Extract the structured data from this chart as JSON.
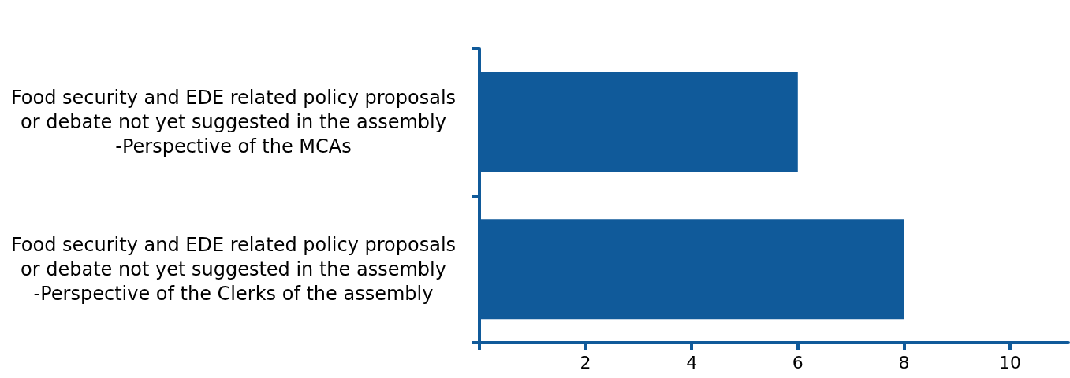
{
  "chart_data": {
    "type": "bar",
    "orientation": "horizontal",
    "categories": [
      "Food security and EDE related policy proposals or debate not yet suggested in the assembly -Perspective of the MCAs",
      "Food security and EDE related policy proposals or debate not yet suggested in the assembly -Perspective of the Clerks of the assembly"
    ],
    "values": [
      6,
      8
    ],
    "color": "#105a9a",
    "xlim": [
      0,
      11.1
    ],
    "xticks": [
      {
        "value": 0,
        "label": null
      },
      2,
      4,
      6,
      8,
      10
    ],
    "grid": false
  }
}
